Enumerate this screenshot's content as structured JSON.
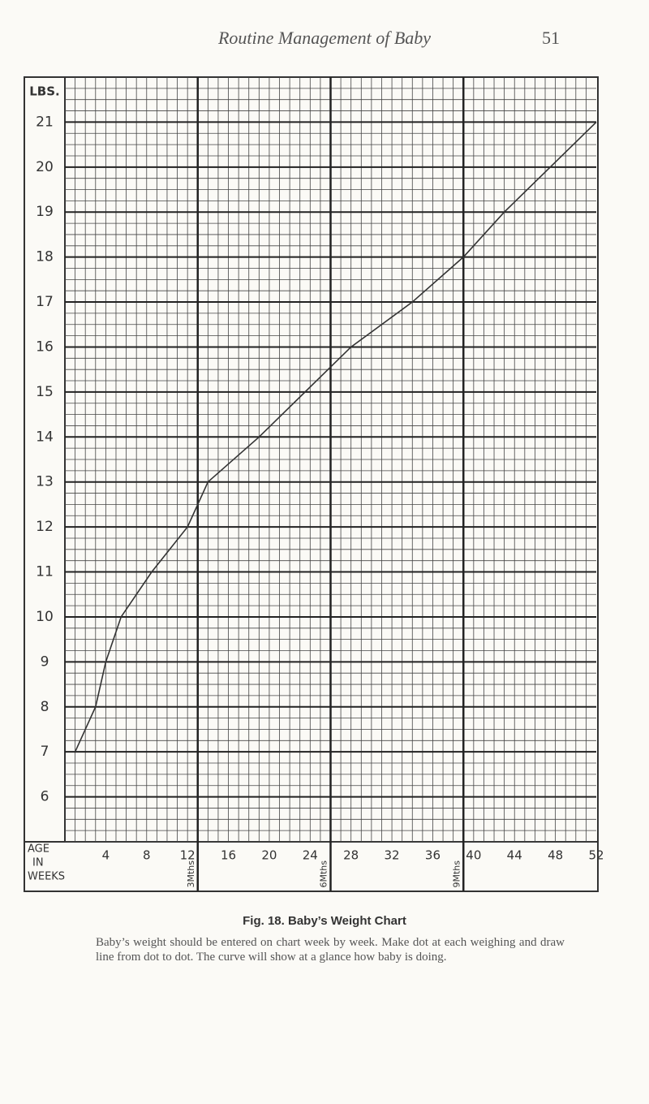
{
  "header": {
    "title": "Routine Management of Baby",
    "page_number": "51"
  },
  "chart_data": {
    "type": "line",
    "y_axis_label": "LBS.",
    "x_axis_label": [
      "AGE",
      "IN",
      "WEEKS"
    ],
    "x": [
      1,
      3,
      4,
      5.5,
      8.5,
      12,
      14,
      19,
      23.5,
      28,
      34,
      39,
      43,
      47.5,
      52
    ],
    "series": [
      {
        "name": "Weight",
        "color": "#333333",
        "values": [
          7,
          8,
          9,
          10,
          11,
          12,
          13,
          14,
          15,
          16,
          17,
          18,
          19,
          20,
          21
        ]
      }
    ],
    "xlim": [
      0,
      52
    ],
    "xticks": [
      4,
      8,
      12,
      16,
      20,
      24,
      28,
      32,
      36,
      40,
      44,
      48,
      52
    ],
    "ylim": [
      5,
      22
    ],
    "yticks": [
      6,
      7,
      8,
      9,
      10,
      11,
      12,
      13,
      14,
      15,
      16,
      17,
      18,
      19,
      20,
      21
    ],
    "month_markers": [
      {
        "value": 13,
        "label": "3Mths"
      },
      {
        "value": 26,
        "label": "6Mths"
      },
      {
        "value": 39,
        "label": "9Mths"
      }
    ],
    "grid": true
  },
  "caption": {
    "title": "Fig. 18.  Baby’s Weight Chart",
    "text": "Baby’s weight should be entered on chart week by week. Make dot at each weighing and draw line from dot to dot. The curve will show at a glance how baby is doing."
  }
}
